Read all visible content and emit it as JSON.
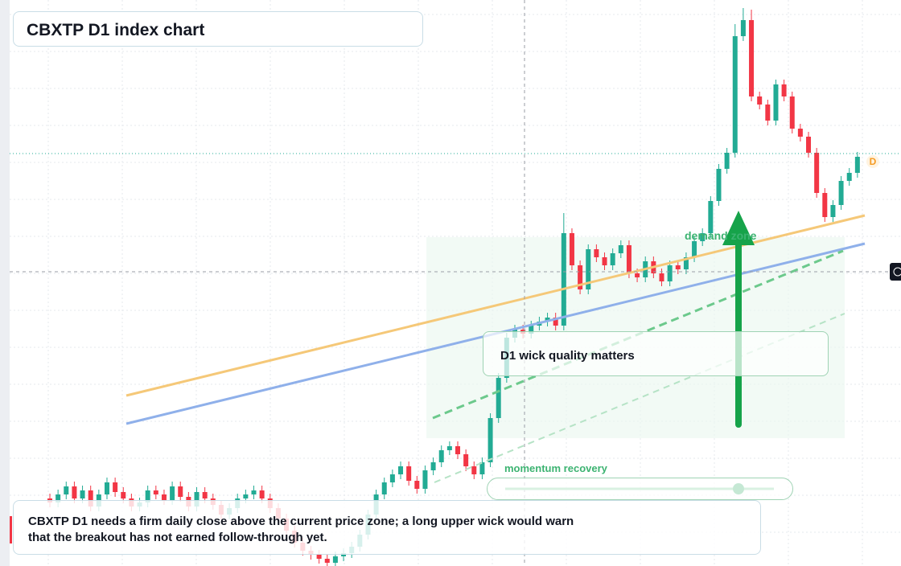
{
  "chart_data": {
    "type": "candlestick",
    "title": "CBXTP D1 index chart",
    "up_color": "#22ab94",
    "down_color": "#f23645",
    "ylim": [
      -4,
      700
    ],
    "open": [
      80,
      75,
      85,
      95,
      80,
      90,
      70,
      85,
      100,
      88,
      80,
      70,
      75,
      90,
      85,
      78,
      95,
      82,
      70,
      88,
      80,
      72,
      60,
      68,
      80,
      85,
      90,
      80,
      68,
      55,
      40,
      25,
      15,
      10,
      5,
      0,
      8,
      12,
      20,
      35,
      60,
      85,
      100,
      110,
      120,
      102,
      92,
      115,
      125,
      140,
      145,
      135,
      120,
      110,
      125,
      180,
      230,
      280,
      290,
      285,
      295,
      300,
      305,
      295,
      410,
      370,
      340,
      390,
      380,
      370,
      385,
      395,
      360,
      355,
      375,
      360,
      350,
      370,
      365,
      380,
      400,
      410,
      450,
      490,
      510,
      655,
      675,
      580,
      570,
      550,
      595,
      580,
      540,
      530,
      510,
      460,
      430,
      445,
      475,
      485
    ],
    "high": [
      86,
      91,
      101,
      101,
      96,
      96,
      91,
      106,
      106,
      94,
      86,
      81,
      96,
      96,
      91,
      101,
      101,
      88,
      94,
      94,
      86,
      78,
      74,
      86,
      91,
      96,
      96,
      86,
      74,
      61,
      46,
      31,
      21,
      16,
      11,
      14,
      18,
      26,
      41,
      66,
      91,
      106,
      116,
      126,
      126,
      108,
      121,
      131,
      146,
      151,
      151,
      141,
      126,
      131,
      186,
      236,
      286,
      296,
      296,
      301,
      306,
      311,
      311,
      435,
      416,
      376,
      396,
      396,
      386,
      391,
      401,
      401,
      366,
      381,
      381,
      366,
      376,
      376,
      386,
      406,
      416,
      456,
      496,
      516,
      670,
      690,
      688,
      586,
      576,
      601,
      601,
      586,
      546,
      536,
      516,
      466,
      451,
      481,
      491,
      511
    ],
    "low": [
      69,
      69,
      79,
      74,
      74,
      64,
      64,
      79,
      82,
      74,
      64,
      64,
      69,
      79,
      72,
      72,
      76,
      64,
      64,
      74,
      66,
      54,
      54,
      62,
      74,
      79,
      74,
      62,
      49,
      34,
      19,
      9,
      4,
      -1,
      -4,
      -4,
      2,
      6,
      14,
      29,
      54,
      79,
      94,
      104,
      96,
      86,
      86,
      109,
      119,
      134,
      129,
      114,
      104,
      104,
      119,
      174,
      224,
      274,
      279,
      279,
      289,
      294,
      289,
      289,
      364,
      334,
      334,
      374,
      364,
      364,
      379,
      354,
      349,
      349,
      354,
      344,
      344,
      359,
      359,
      374,
      394,
      404,
      444,
      484,
      504,
      649,
      574,
      564,
      544,
      544,
      574,
      534,
      524,
      504,
      454,
      424,
      424,
      439,
      469,
      479
    ],
    "close": [
      75,
      85,
      95,
      80,
      90,
      70,
      85,
      100,
      88,
      80,
      70,
      75,
      90,
      85,
      78,
      95,
      82,
      70,
      88,
      80,
      72,
      60,
      68,
      80,
      85,
      90,
      80,
      68,
      55,
      40,
      25,
      15,
      10,
      5,
      0,
      8,
      12,
      20,
      35,
      60,
      85,
      100,
      110,
      120,
      102,
      92,
      115,
      125,
      140,
      145,
      135,
      120,
      110,
      125,
      180,
      230,
      280,
      290,
      285,
      295,
      300,
      305,
      295,
      410,
      370,
      340,
      390,
      380,
      370,
      385,
      395,
      360,
      355,
      375,
      360,
      350,
      370,
      365,
      380,
      400,
      410,
      450,
      490,
      510,
      655,
      675,
      580,
      570,
      550,
      595,
      580,
      540,
      530,
      510,
      460,
      430,
      445,
      475,
      485,
      505
    ],
    "annotations": {
      "note": "CBXTP D1 needs a firm daily close above the current price zone; a long upper wick would warn that the breakout has not earned follow-through yet.",
      "callout": "D1 wick quality matters",
      "slider_label": "momentum recovery",
      "zone_label": "demand zone",
      "marker": "D"
    }
  }
}
